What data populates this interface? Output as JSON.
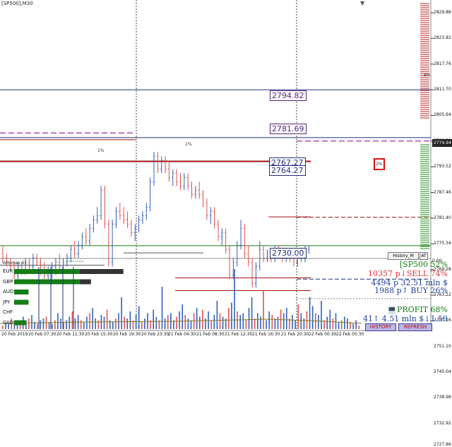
{
  "window": {
    "title": "[SP500],M30"
  },
  "colors": {
    "bull": "#3060b8",
    "bear": "#e05050",
    "green": "#157d15",
    "purple": "#552277",
    "darkred": "#a01010",
    "navy": "#1f2f7a",
    "magenta": "#c070c0"
  },
  "price_axis": {
    "ticks": [
      "2829.88",
      "2823.82",
      "2817.76",
      "2811.70",
      "2805.64",
      "2799.58",
      "2793.52",
      "2787.46",
      "2781.40",
      "2775.34",
      "2769.28",
      "2763.22",
      "2757.16",
      "2751.10",
      "2745.04",
      "2738.98",
      "2732.92",
      "2727.86"
    ],
    "current": "2774.94",
    "pct_label": "8%"
  },
  "levels": {
    "upper": "2794.82",
    "middle": "2781.69",
    "lower_a": "2767.27",
    "lower_b": "2764.27",
    "bottom": "2730.00",
    "label_1pct_left": "1%",
    "label_1pct_mid": "1%",
    "label_2pct": "2%"
  },
  "chart": {
    "candles": [
      {
        "o": 2773,
        "h": 2775,
        "l": 2771,
        "c": 2772
      },
      {
        "o": 2772,
        "h": 2773,
        "l": 2770,
        "c": 2771
      },
      {
        "o": 2771,
        "h": 2772,
        "l": 2769,
        "c": 2770
      },
      {
        "o": 2770,
        "h": 2771,
        "l": 2767,
        "c": 2768
      },
      {
        "o": 2768,
        "h": 2771,
        "l": 2767,
        "c": 2770
      },
      {
        "o": 2770,
        "h": 2771,
        "l": 2768,
        "c": 2769
      },
      {
        "o": 2769,
        "h": 2772,
        "l": 2768,
        "c": 2771
      },
      {
        "o": 2771,
        "h": 2772,
        "l": 2769,
        "c": 2770
      },
      {
        "o": 2770,
        "h": 2773,
        "l": 2769,
        "c": 2772
      },
      {
        "o": 2772,
        "h": 2773,
        "l": 2770,
        "c": 2771
      },
      {
        "o": 2771,
        "h": 2772,
        "l": 2768,
        "c": 2769
      },
      {
        "o": 2769,
        "h": 2771,
        "l": 2767,
        "c": 2768
      },
      {
        "o": 2768,
        "h": 2770,
        "l": 2766,
        "c": 2769
      },
      {
        "o": 2769,
        "h": 2771,
        "l": 2767,
        "c": 2770
      },
      {
        "o": 2770,
        "h": 2772,
        "l": 2768,
        "c": 2771
      },
      {
        "o": 2771,
        "h": 2773,
        "l": 2769,
        "c": 2770
      },
      {
        "o": 2770,
        "h": 2772,
        "l": 2769,
        "c": 2771
      },
      {
        "o": 2771,
        "h": 2773,
        "l": 2770,
        "c": 2772
      },
      {
        "o": 2772,
        "h": 2775,
        "l": 2771,
        "c": 2774
      },
      {
        "o": 2774,
        "h": 2776,
        "l": 2772,
        "c": 2773
      },
      {
        "o": 2773,
        "h": 2776,
        "l": 2772,
        "c": 2775
      },
      {
        "o": 2775,
        "h": 2778,
        "l": 2774,
        "c": 2777
      },
      {
        "o": 2777,
        "h": 2779,
        "l": 2775,
        "c": 2776
      },
      {
        "o": 2776,
        "h": 2780,
        "l": 2775,
        "c": 2779
      },
      {
        "o": 2779,
        "h": 2782,
        "l": 2778,
        "c": 2781
      },
      {
        "o": 2781,
        "h": 2784,
        "l": 2780,
        "c": 2782
      },
      {
        "o": 2782,
        "h": 2789,
        "l": 2781,
        "c": 2788
      },
      {
        "o": 2788,
        "h": 2789,
        "l": 2779,
        "c": 2780
      },
      {
        "o": 2780,
        "h": 2781,
        "l": 2770,
        "c": 2771
      },
      {
        "o": 2771,
        "h": 2781,
        "l": 2770,
        "c": 2780
      },
      {
        "o": 2780,
        "h": 2784,
        "l": 2779,
        "c": 2783
      },
      {
        "o": 2783,
        "h": 2785,
        "l": 2781,
        "c": 2782
      },
      {
        "o": 2782,
        "h": 2784,
        "l": 2780,
        "c": 2781
      },
      {
        "o": 2781,
        "h": 2783,
        "l": 2779,
        "c": 2780
      },
      {
        "o": 2780,
        "h": 2781,
        "l": 2777,
        "c": 2778
      },
      {
        "o": 2778,
        "h": 2780,
        "l": 2776,
        "c": 2779
      },
      {
        "o": 2779,
        "h": 2782,
        "l": 2778,
        "c": 2781
      },
      {
        "o": 2781,
        "h": 2783,
        "l": 2780,
        "c": 2782
      },
      {
        "o": 2782,
        "h": 2785,
        "l": 2781,
        "c": 2784
      },
      {
        "o": 2784,
        "h": 2791,
        "l": 2783,
        "c": 2790
      },
      {
        "o": 2790,
        "h": 2797,
        "l": 2789,
        "c": 2796
      },
      {
        "o": 2796,
        "h": 2797,
        "l": 2792,
        "c": 2793
      },
      {
        "o": 2793,
        "h": 2796,
        "l": 2792,
        "c": 2795
      },
      {
        "o": 2795,
        "h": 2796,
        "l": 2792,
        "c": 2793
      },
      {
        "o": 2793,
        "h": 2795,
        "l": 2790,
        "c": 2791
      },
      {
        "o": 2791,
        "h": 2793,
        "l": 2789,
        "c": 2792
      },
      {
        "o": 2792,
        "h": 2793,
        "l": 2789,
        "c": 2790
      },
      {
        "o": 2790,
        "h": 2792,
        "l": 2788,
        "c": 2789
      },
      {
        "o": 2789,
        "h": 2792,
        "l": 2788,
        "c": 2791
      },
      {
        "o": 2791,
        "h": 2792,
        "l": 2788,
        "c": 2789
      },
      {
        "o": 2789,
        "h": 2790,
        "l": 2786,
        "c": 2787
      },
      {
        "o": 2787,
        "h": 2789,
        "l": 2786,
        "c": 2788
      },
      {
        "o": 2788,
        "h": 2790,
        "l": 2786,
        "c": 2787
      },
      {
        "o": 2787,
        "h": 2788,
        "l": 2784,
        "c": 2785
      },
      {
        "o": 2785,
        "h": 2786,
        "l": 2781,
        "c": 2782
      },
      {
        "o": 2782,
        "h": 2784,
        "l": 2780,
        "c": 2783
      },
      {
        "o": 2783,
        "h": 2784,
        "l": 2779,
        "c": 2780
      },
      {
        "o": 2780,
        "h": 2781,
        "l": 2776,
        "c": 2777
      },
      {
        "o": 2777,
        "h": 2779,
        "l": 2775,
        "c": 2778
      },
      {
        "o": 2778,
        "h": 2779,
        "l": 2773,
        "c": 2774
      },
      {
        "o": 2774,
        "h": 2775,
        "l": 2767,
        "c": 2768
      },
      {
        "o": 2768,
        "h": 2772,
        "l": 2767,
        "c": 2771
      },
      {
        "o": 2771,
        "h": 2776,
        "l": 2770,
        "c": 2775
      },
      {
        "o": 2775,
        "h": 2781,
        "l": 2774,
        "c": 2779
      },
      {
        "o": 2779,
        "h": 2780,
        "l": 2772,
        "c": 2773
      },
      {
        "o": 2773,
        "h": 2775,
        "l": 2770,
        "c": 2771
      },
      {
        "o": 2771,
        "h": 2772,
        "l": 2765,
        "c": 2766
      },
      {
        "o": 2766,
        "h": 2771,
        "l": 2765,
        "c": 2770
      },
      {
        "o": 2770,
        "h": 2776,
        "l": 2769,
        "c": 2774
      },
      {
        "o": 2774,
        "h": 2775,
        "l": 2771,
        "c": 2772
      },
      {
        "o": 2772,
        "h": 2774,
        "l": 2771,
        "c": 2773
      },
      {
        "o": 2773,
        "h": 2774,
        "l": 2771,
        "c": 2772
      },
      {
        "o": 2772,
        "h": 2775,
        "l": 2771,
        "c": 2774
      },
      {
        "o": 2774,
        "h": 2775,
        "l": 2772,
        "c": 2773
      },
      {
        "o": 2773,
        "h": 2774,
        "l": 2771,
        "c": 2772
      },
      {
        "o": 2772,
        "h": 2774,
        "l": 2771,
        "c": 2773
      },
      {
        "o": 2773,
        "h": 2774,
        "l": 2771,
        "c": 2772
      },
      {
        "o": 2772,
        "h": 2773,
        "l": 2770,
        "c": 2771
      },
      {
        "o": 2771,
        "h": 2773,
        "l": 2770,
        "c": 2772
      },
      {
        "o": 2772,
        "h": 2773,
        "l": 2771,
        "c": 2772
      },
      {
        "o": 2772,
        "h": 2775,
        "l": 2771,
        "c": 2774
      },
      {
        "o": 2774,
        "h": 2775,
        "l": 2773,
        "c": 2774.9
      }
    ]
  },
  "volume": {
    "title": "Volumes 61",
    "scale": "0.00",
    "mini_label": "8779.6 2.5  8.64",
    "values": [
      2,
      4,
      3,
      6,
      5,
      4,
      3,
      7,
      5,
      6,
      8,
      4,
      3,
      5,
      6,
      7,
      4,
      3,
      5,
      9,
      6,
      4,
      5,
      7,
      10,
      6,
      8,
      5,
      4,
      7,
      9,
      12,
      6,
      5,
      8,
      7,
      11,
      5,
      4,
      6,
      9,
      18,
      7,
      6,
      10,
      5,
      8,
      13,
      4,
      6,
      9,
      5,
      11,
      7,
      5,
      24,
      6,
      8,
      9,
      5,
      7,
      10,
      14,
      8,
      6,
      5,
      9,
      12,
      7,
      11,
      6,
      10,
      5,
      8,
      16,
      9,
      7,
      6,
      12,
      15,
      34,
      10,
      8,
      9,
      5,
      12,
      18,
      6,
      9,
      7,
      22,
      5,
      10,
      8,
      6,
      7,
      11,
      9,
      12,
      6,
      8,
      5,
      14,
      9,
      6,
      10,
      18,
      13,
      9,
      8,
      16,
      5,
      7,
      11,
      6,
      9,
      4,
      5,
      7,
      6,
      4,
      3,
      5,
      2,
      3,
      4,
      2,
      3,
      5,
      2
    ],
    "currencies": [
      "EUR",
      "GBP",
      "AUD",
      "JPY",
      "CHF",
      "CAD"
    ],
    "currency_strength": [
      0.91,
      0.64,
      0.12,
      0.12,
      0.0,
      0.1
    ]
  },
  "panel": {
    "line1": "[SP500 52%",
    "line2": "10357 p↓SELL 74%",
    "line3": "4494 p  32.51 mln $",
    "line4": "1988 p↑ BUY 26%",
    "profit": "PROFIT 68%",
    "line6": "41↑  4.51 mln $↓1.59",
    "history_btn": "HISTORY",
    "refresh_btn": "REFRESH"
  },
  "history_label": "History_M",
  "auto_label": "AT",
  "time_axis": [
    "20 Feb 2019",
    "20 Feb 07:30",
    "20 Feb 11:30",
    "20 Feb 15:30",
    "20 Feb 19:30",
    "20 Feb 23:30",
    "21 Feb 04:30",
    "21 Feb 08:30",
    "21 Feb 12:30",
    "21 Feb 16:30",
    "21 Feb 20:30",
    "22 Feb 00:30",
    "22 Feb 05:30"
  ]
}
